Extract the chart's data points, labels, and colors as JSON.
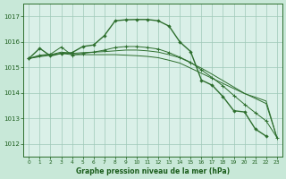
{
  "background_color": "#c8e8d8",
  "plot_bg_color": "#daf0e8",
  "grid_color": "#9ec8b8",
  "line_color": "#2d6e2d",
  "text_color": "#1a5c1a",
  "xlabel": "Graphe pression niveau de la mer (hPa)",
  "ylim": [
    1011.5,
    1017.5
  ],
  "xlim": [
    -0.5,
    23.5
  ],
  "yticks": [
    1012,
    1013,
    1014,
    1015,
    1016,
    1017
  ],
  "xticks": [
    0,
    1,
    2,
    3,
    4,
    5,
    6,
    7,
    8,
    9,
    10,
    11,
    12,
    13,
    14,
    15,
    16,
    17,
    18,
    19,
    20,
    21,
    22,
    23
  ],
  "series1_x": [
    0,
    1,
    2,
    3,
    4,
    5,
    6,
    7,
    8,
    9,
    10,
    11,
    12,
    13,
    14,
    15,
    16,
    17,
    18,
    19,
    20,
    21,
    22
  ],
  "series1_y": [
    1015.35,
    1015.75,
    1015.45,
    1015.55,
    1015.58,
    1015.82,
    1015.88,
    1016.25,
    1016.83,
    1016.87,
    1016.88,
    1016.88,
    1016.83,
    1016.62,
    1016.0,
    1015.62,
    1014.5,
    1014.3,
    1013.85,
    1013.3,
    1013.25,
    1012.58,
    1012.3
  ],
  "series2_x": [
    0,
    1,
    2,
    3,
    4,
    5,
    6,
    7,
    8,
    9,
    10,
    11,
    12,
    13,
    14,
    15,
    16,
    17,
    18,
    19,
    20,
    21,
    22,
    23
  ],
  "series2_y": [
    1015.35,
    1015.48,
    1015.52,
    1015.8,
    1015.48,
    1015.55,
    1015.6,
    1015.68,
    1015.78,
    1015.82,
    1015.82,
    1015.78,
    1015.72,
    1015.58,
    1015.4,
    1015.2,
    1014.9,
    1014.6,
    1014.27,
    1013.9,
    1013.55,
    1013.22,
    1012.9,
    1012.25
  ],
  "series3_x": [
    0,
    1,
    2,
    3,
    4,
    5,
    6,
    7,
    8,
    9,
    10,
    11,
    12,
    13,
    14,
    15,
    16,
    17,
    18,
    19,
    20,
    21,
    22,
    23
  ],
  "series3_y": [
    1015.35,
    1015.45,
    1015.5,
    1015.6,
    1015.55,
    1015.58,
    1015.6,
    1015.62,
    1015.65,
    1015.68,
    1015.68,
    1015.65,
    1015.6,
    1015.5,
    1015.38,
    1015.18,
    1014.97,
    1014.73,
    1014.48,
    1014.23,
    1013.98,
    1013.78,
    1013.58,
    1012.25
  ],
  "series4_x": [
    0,
    1,
    2,
    3,
    4,
    5,
    6,
    7,
    8,
    9,
    10,
    11,
    12,
    13,
    14,
    15,
    16,
    17,
    18,
    19,
    20,
    21,
    22,
    23
  ],
  "series4_y": [
    1015.35,
    1015.42,
    1015.48,
    1015.55,
    1015.5,
    1015.5,
    1015.5,
    1015.5,
    1015.5,
    1015.48,
    1015.46,
    1015.43,
    1015.38,
    1015.28,
    1015.17,
    1014.97,
    1014.77,
    1014.57,
    1014.37,
    1014.17,
    1013.97,
    1013.83,
    1013.68,
    1012.25
  ]
}
